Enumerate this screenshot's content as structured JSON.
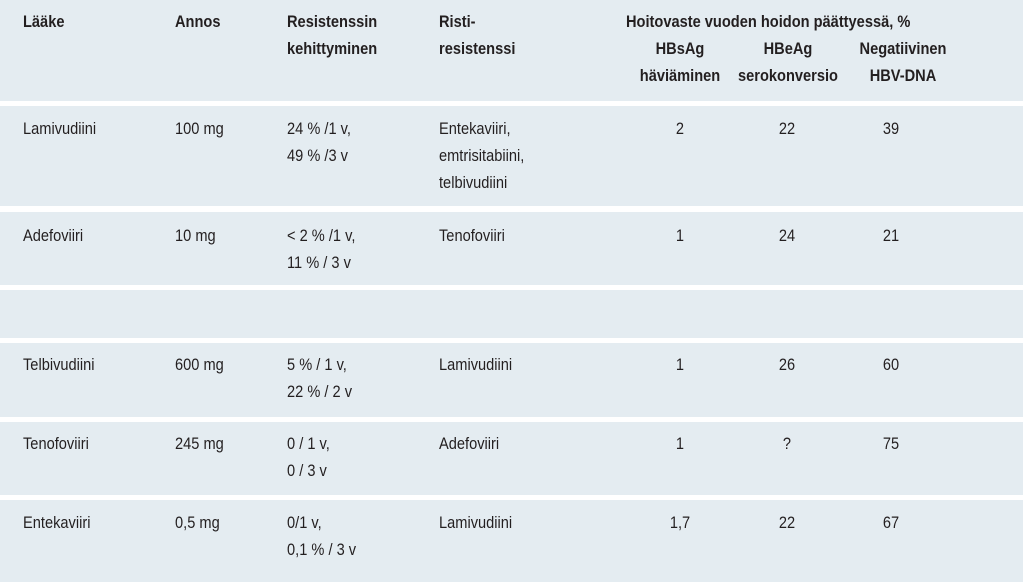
{
  "header": {
    "col_drug": "Lääke",
    "col_dose": "Annos",
    "col_resistance_line1": "Resistenssin",
    "col_resistance_line2": "kehittyminen",
    "col_cross_line1": "Risti-",
    "col_cross_line2": "resistenssi",
    "group_title": "Hoitovaste vuoden hoidon päättyessä, %",
    "sub_hbsag_line1": "HBsAg",
    "sub_hbsag_line2": "häviäminen",
    "sub_hbeag_line1": "HBeAg",
    "sub_hbeag_line2": "serokonversio",
    "sub_dna_line1": "Negatiivinen",
    "sub_dna_line2": "HBV-DNA"
  },
  "rows": [
    {
      "drug": "Lamivudiini",
      "dose": "100 mg",
      "resistance": [
        "24 % /1 v,",
        "49 % /3 v"
      ],
      "cross": [
        "Entekaviiri,",
        "emtrisitabiini,",
        "telbivudiini"
      ],
      "hbsag": "2",
      "hbeag": "22",
      "dna": "39"
    },
    {
      "drug": "Adefoviiri",
      "dose": "10 mg",
      "resistance": [
        "< 2 % /1 v,",
        "11 % / 3 v"
      ],
      "cross": [
        "Tenofoviiri"
      ],
      "hbsag": "1",
      "hbeag": "24",
      "dna": "21"
    },
    {
      "drug": "Telbivudiini",
      "dose": "600 mg",
      "resistance": [
        "5 % / 1 v,",
        "22 % / 2 v"
      ],
      "cross": [
        "Lamivudiini"
      ],
      "hbsag": "1",
      "hbeag": "26",
      "dna": "60"
    },
    {
      "drug": "Tenofoviiri",
      "dose": "245 mg",
      "resistance": [
        "0 / 1 v,",
        "0 / 3 v"
      ],
      "cross": [
        "Adefoviiri"
      ],
      "hbsag": "1",
      "hbeag": "?",
      "dna": "75"
    },
    {
      "drug": "Entekaviiri",
      "dose": "0,5 mg",
      "resistance": [
        "0/1 v,",
        "0,1 % / 3 v"
      ],
      "cross": [
        "Lamivudiini"
      ],
      "hbsag": "1,7",
      "hbeag": "22",
      "dna": "67"
    }
  ],
  "colors": {
    "band": "#e4ecf1",
    "text": "#231f20"
  }
}
